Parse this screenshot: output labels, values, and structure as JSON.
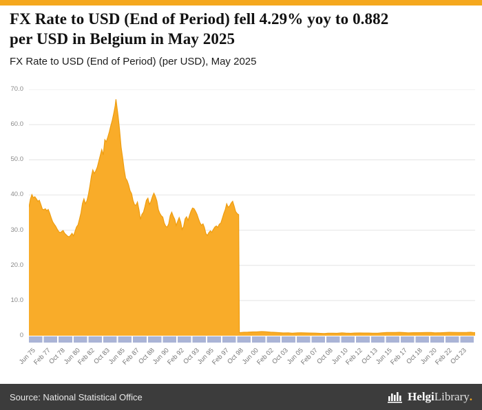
{
  "theme": {
    "accent_color": "#F5A81E",
    "chart_fill_color": "#F9AC29",
    "chart_line_color": "#EE9D10",
    "grid_color": "#E4E4E4",
    "tick_band_color": "#AAB4D6",
    "footer_bg_color": "#3C3C3C"
  },
  "header": {
    "title_line1": "FX Rate to USD (End of Period) fell 4.29% yoy to 0.882",
    "title_line2": "per USD in Belgium in May 2025",
    "subtitle": "FX Rate to USD (End of Period) (per USD), May 2025"
  },
  "footer": {
    "source": "Source: National Statistical Office",
    "logo_text_bold": "Helgi",
    "logo_text_regular": "Library",
    "logo_suffix": "."
  },
  "chart_data": {
    "type": "area",
    "title": "FX Rate to USD (End of Period) (per USD), May 2025",
    "series_name": "FX Rate to USD (End of Period), Belgium (per USD)",
    "country": "Belgium",
    "latest_period": "May 2025",
    "latest_value": 0.882,
    "yoy_change_pct": -4.29,
    "xlim": [
      1975.417,
      2025.417
    ],
    "ylim": [
      0,
      70
    ],
    "grid": true,
    "legend": "none",
    "y_ticks": [
      0,
      10,
      20,
      30,
      40,
      50,
      60,
      70
    ],
    "y_tick_labels": [
      "0",
      "10.0",
      "20.0",
      "30.0",
      "40.0",
      "50.0",
      "60.0",
      "70.0"
    ],
    "x_tick_interval_months": 20,
    "x_tick_labels": [
      "Jun 75",
      "Feb 77",
      "Oct 78",
      "Jun 80",
      "Feb 82",
      "Oct 83",
      "Jun 85",
      "Feb 87",
      "Oct 88",
      "Jun 90",
      "Feb 92",
      "Oct 93",
      "Jun 95",
      "Feb 97",
      "Oct 98",
      "Jun 00",
      "Feb 02",
      "Oct 03",
      "Jun 05",
      "Feb 07",
      "Oct 08",
      "Jun 10",
      "Feb 12",
      "Oct 13",
      "Jun 15",
      "Feb 17",
      "Oct 18",
      "Jun 20",
      "Feb 22",
      "Oct 23"
    ],
    "points": [
      [
        1975.42,
        36.5
      ],
      [
        1975.58,
        38.8
      ],
      [
        1975.75,
        40.1
      ],
      [
        1975.92,
        39.2
      ],
      [
        1976.08,
        39.5
      ],
      [
        1976.25,
        38.9
      ],
      [
        1976.42,
        38.2
      ],
      [
        1976.58,
        38.5
      ],
      [
        1976.75,
        37.3
      ],
      [
        1976.92,
        36.0
      ],
      [
        1977.08,
        35.8
      ],
      [
        1977.25,
        36.1
      ],
      [
        1977.42,
        35.5
      ],
      [
        1977.58,
        35.9
      ],
      [
        1977.75,
        34.8
      ],
      [
        1977.92,
        33.5
      ],
      [
        1978.08,
        32.4
      ],
      [
        1978.25,
        31.7
      ],
      [
        1978.42,
        31.1
      ],
      [
        1978.58,
        30.3
      ],
      [
        1978.75,
        29.6
      ],
      [
        1978.92,
        29.3
      ],
      [
        1979.08,
        29.6
      ],
      [
        1979.25,
        29.9
      ],
      [
        1979.42,
        29.1
      ],
      [
        1979.58,
        28.7
      ],
      [
        1979.75,
        28.3
      ],
      [
        1979.92,
        28.1
      ],
      [
        1980.08,
        28.5
      ],
      [
        1980.25,
        29.1
      ],
      [
        1980.42,
        28.4
      ],
      [
        1980.58,
        29.6
      ],
      [
        1980.75,
        30.9
      ],
      [
        1980.92,
        31.5
      ],
      [
        1981.08,
        33.1
      ],
      [
        1981.25,
        34.9
      ],
      [
        1981.42,
        37.6
      ],
      [
        1981.58,
        38.9
      ],
      [
        1981.75,
        37.5
      ],
      [
        1981.92,
        38.4
      ],
      [
        1982.08,
        40.1
      ],
      [
        1982.25,
        42.6
      ],
      [
        1982.42,
        45.4
      ],
      [
        1982.58,
        47.1
      ],
      [
        1982.75,
        46.1
      ],
      [
        1982.92,
        46.9
      ],
      [
        1983.08,
        47.9
      ],
      [
        1983.25,
        49.6
      ],
      [
        1983.42,
        51.3
      ],
      [
        1983.58,
        52.9
      ],
      [
        1983.75,
        51.4
      ],
      [
        1983.92,
        55.7
      ],
      [
        1984.08,
        55.1
      ],
      [
        1984.25,
        56.4
      ],
      [
        1984.42,
        57.9
      ],
      [
        1984.58,
        59.6
      ],
      [
        1984.75,
        61.2
      ],
      [
        1984.92,
        63.2
      ],
      [
        1985.08,
        65.3
      ],
      [
        1985.17,
        67.2
      ],
      [
        1985.33,
        64.0
      ],
      [
        1985.42,
        62.3
      ],
      [
        1985.58,
        58.4
      ],
      [
        1985.75,
        53.6
      ],
      [
        1985.92,
        50.6
      ],
      [
        1986.08,
        47.4
      ],
      [
        1986.25,
        44.8
      ],
      [
        1986.42,
        44.1
      ],
      [
        1986.58,
        42.9
      ],
      [
        1986.75,
        41.2
      ],
      [
        1986.92,
        40.4
      ],
      [
        1987.08,
        38.4
      ],
      [
        1987.25,
        37.2
      ],
      [
        1987.42,
        37.1
      ],
      [
        1987.58,
        38.0
      ],
      [
        1987.75,
        35.8
      ],
      [
        1987.92,
        33.1
      ],
      [
        1988.08,
        34.5
      ],
      [
        1988.25,
        35.1
      ],
      [
        1988.42,
        36.7
      ],
      [
        1988.58,
        38.5
      ],
      [
        1988.75,
        39.1
      ],
      [
        1988.92,
        37.3
      ],
      [
        1989.08,
        38.1
      ],
      [
        1989.25,
        39.5
      ],
      [
        1989.42,
        40.5
      ],
      [
        1989.58,
        39.6
      ],
      [
        1989.75,
        38.3
      ],
      [
        1989.92,
        35.8
      ],
      [
        1990.08,
        34.8
      ],
      [
        1990.25,
        34.1
      ],
      [
        1990.42,
        33.7
      ],
      [
        1990.58,
        32.0
      ],
      [
        1990.75,
        31.1
      ],
      [
        1990.92,
        30.9
      ],
      [
        1991.08,
        31.8
      ],
      [
        1991.25,
        34.1
      ],
      [
        1991.42,
        35.1
      ],
      [
        1991.58,
        34.0
      ],
      [
        1991.75,
        33.1
      ],
      [
        1991.92,
        31.3
      ],
      [
        1992.08,
        32.5
      ],
      [
        1992.25,
        33.6
      ],
      [
        1992.42,
        32.3
      ],
      [
        1992.58,
        30.2
      ],
      [
        1992.75,
        31.0
      ],
      [
        1992.92,
        33.2
      ],
      [
        1993.08,
        33.8
      ],
      [
        1993.25,
        32.8
      ],
      [
        1993.42,
        34.2
      ],
      [
        1993.58,
        35.4
      ],
      [
        1993.75,
        36.3
      ],
      [
        1993.92,
        36.1
      ],
      [
        1994.08,
        35.4
      ],
      [
        1994.25,
        34.5
      ],
      [
        1994.42,
        33.2
      ],
      [
        1994.58,
        32.1
      ],
      [
        1994.75,
        31.4
      ],
      [
        1994.92,
        31.8
      ],
      [
        1995.08,
        30.8
      ],
      [
        1995.25,
        29.0
      ],
      [
        1995.42,
        28.5
      ],
      [
        1995.58,
        29.3
      ],
      [
        1995.75,
        29.8
      ],
      [
        1995.92,
        29.4
      ],
      [
        1996.08,
        30.2
      ],
      [
        1996.25,
        30.9
      ],
      [
        1996.42,
        31.2
      ],
      [
        1996.58,
        30.8
      ],
      [
        1996.75,
        31.7
      ],
      [
        1996.92,
        32.0
      ],
      [
        1997.08,
        33.3
      ],
      [
        1997.25,
        34.7
      ],
      [
        1997.42,
        35.9
      ],
      [
        1997.58,
        37.5
      ],
      [
        1997.75,
        36.5
      ],
      [
        1997.92,
        36.9
      ],
      [
        1998.08,
        37.7
      ],
      [
        1998.25,
        38.2
      ],
      [
        1998.42,
        36.8
      ],
      [
        1998.58,
        35.3
      ],
      [
        1998.75,
        34.7
      ],
      [
        1998.92,
        34.4
      ],
      [
        1999.0,
        0.86
      ],
      [
        1999.5,
        0.97
      ],
      [
        1999.92,
        1.0
      ],
      [
        2000.5,
        1.07
      ],
      [
        2000.92,
        1.07
      ],
      [
        2001.5,
        1.18
      ],
      [
        2001.92,
        1.13
      ],
      [
        2002.5,
        1.01
      ],
      [
        2002.92,
        0.95
      ],
      [
        2003.5,
        0.87
      ],
      [
        2003.92,
        0.79
      ],
      [
        2004.5,
        0.82
      ],
      [
        2004.92,
        0.73
      ],
      [
        2005.5,
        0.83
      ],
      [
        2005.92,
        0.85
      ],
      [
        2006.5,
        0.78
      ],
      [
        2006.92,
        0.76
      ],
      [
        2007.5,
        0.74
      ],
      [
        2007.92,
        0.68
      ],
      [
        2008.5,
        0.63
      ],
      [
        2008.92,
        0.72
      ],
      [
        2009.5,
        0.71
      ],
      [
        2009.92,
        0.69
      ],
      [
        2010.5,
        0.82
      ],
      [
        2010.92,
        0.75
      ],
      [
        2011.5,
        0.69
      ],
      [
        2011.92,
        0.77
      ],
      [
        2012.5,
        0.79
      ],
      [
        2012.92,
        0.76
      ],
      [
        2013.5,
        0.77
      ],
      [
        2013.92,
        0.73
      ],
      [
        2014.5,
        0.73
      ],
      [
        2014.92,
        0.82
      ],
      [
        2015.5,
        0.9
      ],
      [
        2015.92,
        0.92
      ],
      [
        2016.5,
        0.9
      ],
      [
        2016.92,
        0.95
      ],
      [
        2017.5,
        0.88
      ],
      [
        2017.92,
        0.83
      ],
      [
        2018.5,
        0.86
      ],
      [
        2018.92,
        0.87
      ],
      [
        2019.5,
        0.88
      ],
      [
        2019.92,
        0.89
      ],
      [
        2020.5,
        0.89
      ],
      [
        2020.92,
        0.82
      ],
      [
        2021.5,
        0.84
      ],
      [
        2021.92,
        0.88
      ],
      [
        2022.5,
        0.96
      ],
      [
        2022.92,
        0.94
      ],
      [
        2023.5,
        0.92
      ],
      [
        2023.92,
        0.91
      ],
      [
        2024.5,
        0.93
      ],
      [
        2024.92,
        0.97
      ],
      [
        2025.17,
        0.91
      ],
      [
        2025.42,
        0.882
      ]
    ]
  }
}
